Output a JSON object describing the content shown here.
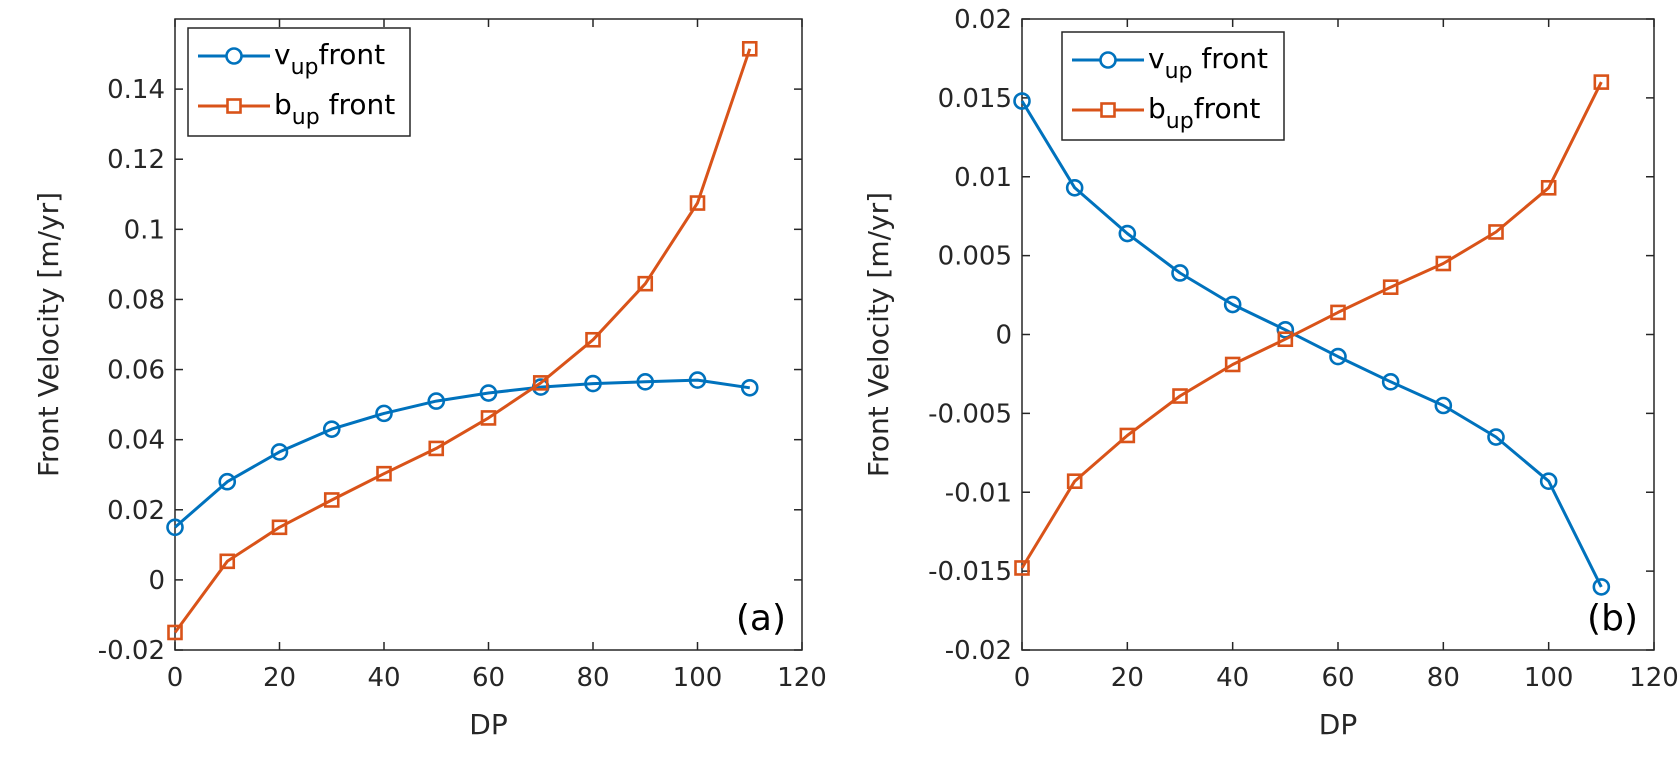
{
  "chart_data": [
    {
      "type": "line",
      "panel_label": "(a)",
      "xlabel": "DP",
      "ylabel": "Front Velocity [m/yr]",
      "xlim": [
        0,
        120
      ],
      "ylim": [
        -0.02,
        0.16
      ],
      "xticks": [
        0,
        20,
        40,
        60,
        80,
        100,
        120
      ],
      "xtick_labels": [
        "0",
        "20",
        "40",
        "60",
        "80",
        "100",
        "120"
      ],
      "yticks": [
        -0.02,
        0,
        0.02,
        0.04,
        0.06,
        0.08,
        0.1,
        0.12,
        0.14
      ],
      "ytick_labels": [
        "-0.02",
        "0",
        "0.02",
        "0.04",
        "0.06",
        "0.08",
        "0.1",
        "0.12",
        "0.14"
      ],
      "legend_position": "top-left",
      "x": [
        0,
        10,
        20,
        30,
        40,
        50,
        60,
        70,
        80,
        90,
        100,
        110
      ],
      "series": [
        {
          "name": "v_up front",
          "legend_main": "v",
          "legend_sub": "up",
          "legend_tail": "front",
          "color": "#0072BD",
          "marker": "circle",
          "values": [
            0.015,
            0.028,
            0.0365,
            0.043,
            0.0475,
            0.051,
            0.0533,
            0.055,
            0.056,
            0.0565,
            0.057,
            0.0548
          ]
        },
        {
          "name": "b_up front",
          "legend_main": "b",
          "legend_sub": "up",
          "legend_tail": " front",
          "color": "#D95319",
          "marker": "square",
          "values": [
            -0.015,
            0.0053,
            0.015,
            0.0228,
            0.0303,
            0.0375,
            0.0462,
            0.0562,
            0.0685,
            0.0845,
            0.1075,
            0.1515
          ]
        }
      ]
    },
    {
      "type": "line",
      "panel_label": "(b)",
      "xlabel": "DP",
      "ylabel": "Front Velocity [m/yr]",
      "xlim": [
        0,
        120
      ],
      "ylim": [
        -0.02,
        0.02
      ],
      "xticks": [
        0,
        20,
        40,
        60,
        80,
        100,
        120
      ],
      "xtick_labels": [
        "0",
        "20",
        "40",
        "60",
        "80",
        "100",
        "120"
      ],
      "yticks": [
        -0.02,
        -0.015,
        -0.01,
        -0.005,
        0,
        0.005,
        0.01,
        0.015,
        0.02
      ],
      "ytick_labels": [
        "-0.02",
        "-0.015",
        "-0.01",
        "-0.005",
        "0",
        "0.005",
        "0.01",
        "0.015",
        "0.02"
      ],
      "legend_position": "top-left",
      "x": [
        0,
        10,
        20,
        30,
        40,
        50,
        60,
        70,
        80,
        90,
        100,
        110
      ],
      "series": [
        {
          "name": "v_up front",
          "legend_main": "v",
          "legend_sub": "up",
          "legend_tail": " front",
          "color": "#0072BD",
          "marker": "circle",
          "values": [
            0.0148,
            0.0093,
            0.0064,
            0.0039,
            0.0019,
            0.0003,
            -0.0014,
            -0.003,
            -0.0045,
            -0.0065,
            -0.0093,
            -0.016
          ]
        },
        {
          "name": "b_up front",
          "legend_main": "b",
          "legend_sub": "up",
          "legend_tail": "front",
          "color": "#D95319",
          "marker": "square",
          "values": [
            -0.0148,
            -0.0093,
            -0.0064,
            -0.0039,
            -0.0019,
            -0.0003,
            0.0014,
            0.003,
            0.0045,
            0.0065,
            0.0093,
            0.016
          ]
        }
      ]
    }
  ]
}
